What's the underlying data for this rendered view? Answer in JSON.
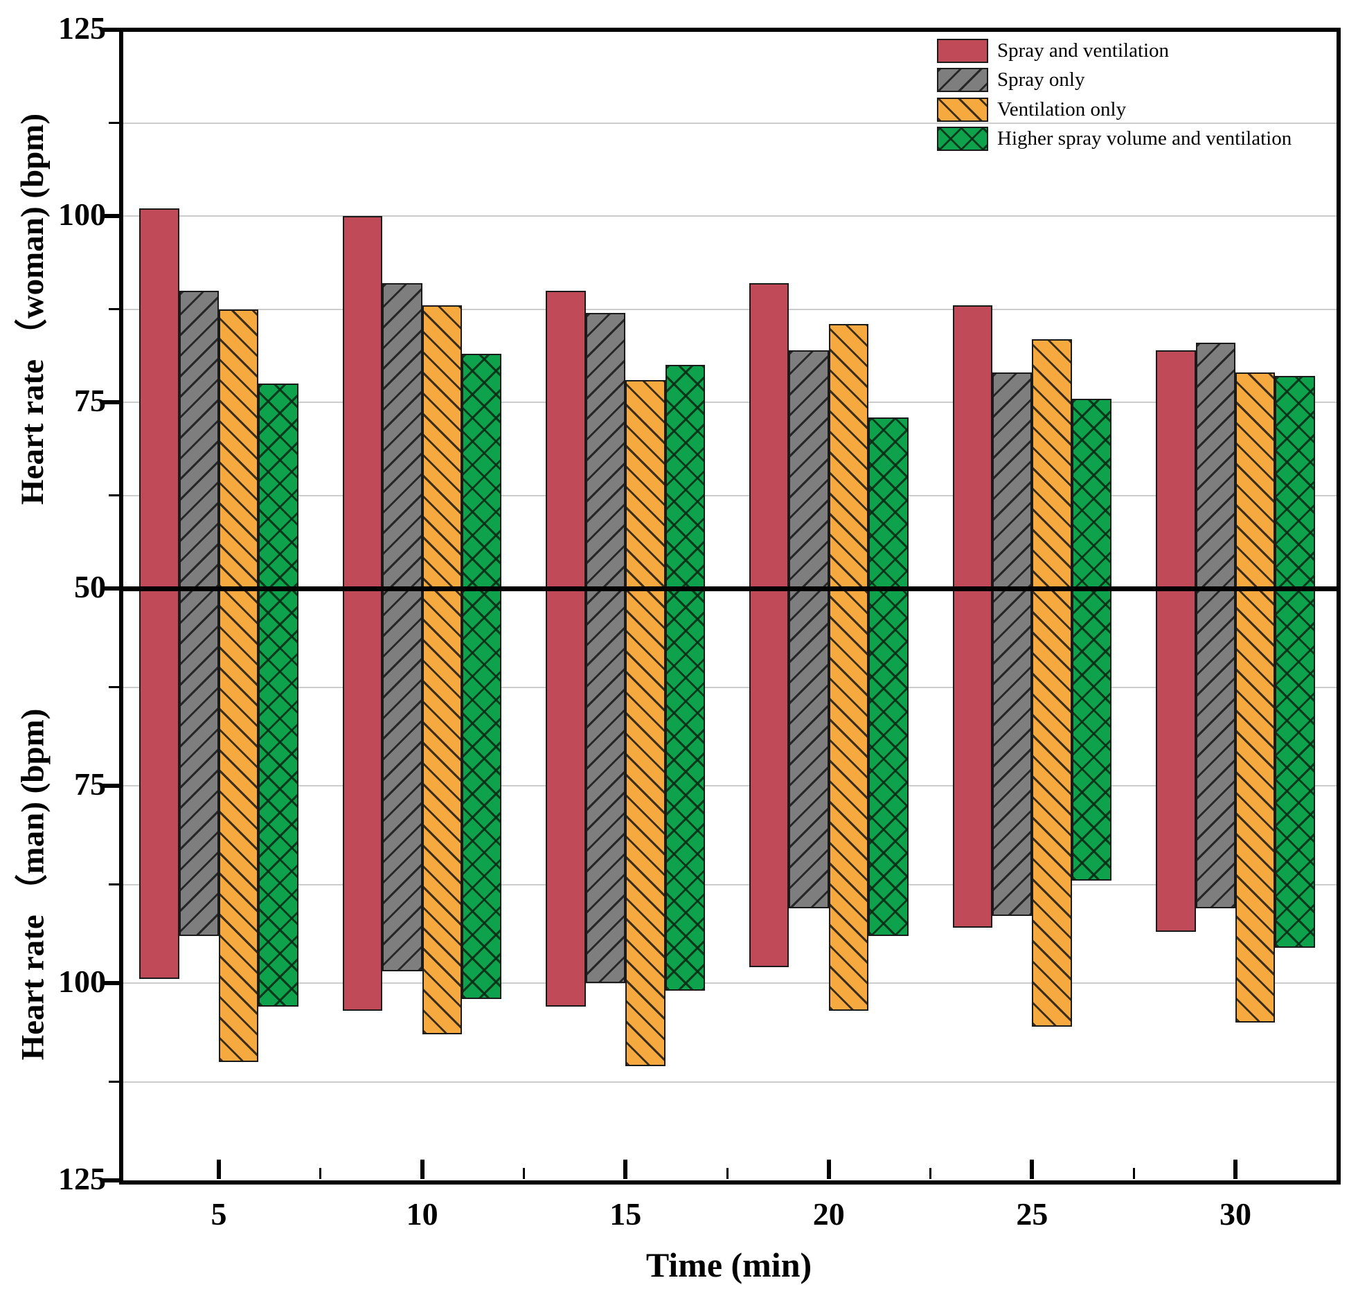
{
  "chart_data": {
    "type": "bar",
    "title": "",
    "xlabel": "Time (min)",
    "ylabel_woman": "Heart rate （woman) (bpm)",
    "ylabel_man": "Heart rate （man) (bpm)",
    "x_unit": "min",
    "x": [
      5,
      10,
      15,
      20,
      25,
      30
    ],
    "x_minor_ticks": [
      7.5,
      12.5,
      17.5,
      22.5,
      27.5
    ],
    "y_axis": {
      "woman_range": [
        50,
        125
      ],
      "man_range": [
        50,
        125
      ],
      "major_ticks": [
        50,
        75,
        100,
        125
      ],
      "minor_ticks": [
        62.5,
        87.5,
        112.5
      ],
      "grid_values": [
        62.5,
        75,
        87.5,
        100,
        112.5
      ],
      "grid_on": true
    },
    "legend_position": "top-right",
    "series": [
      {
        "name": "Spray and ventilation",
        "color": "#c14a58",
        "pattern": "solid",
        "woman": [
          101,
          100,
          90,
          91,
          88,
          82
        ],
        "man": [
          99.5,
          103.5,
          103,
          98,
          93,
          93.5
        ]
      },
      {
        "name": "Spray only",
        "color": "#7e7e7e",
        "pattern": "diag-up",
        "woman": [
          90,
          91,
          87,
          82,
          79,
          83
        ],
        "man": [
          94,
          98.5,
          100,
          90.5,
          91.5,
          90.5
        ]
      },
      {
        "name": "Ventilation only",
        "color": "#f6a93e",
        "pattern": "diag-down",
        "woman": [
          87.5,
          88,
          78,
          85.5,
          83.5,
          79
        ],
        "man": [
          110,
          106.5,
          110.5,
          103.5,
          105.5,
          105
        ]
      },
      {
        "name": "Higher spray volume and ventilation",
        "color": "#0fa24d",
        "pattern": "cross",
        "woman": [
          77.5,
          81.5,
          80,
          73,
          75.5,
          78.5
        ],
        "man": [
          103,
          102,
          101,
          94,
          87,
          95.5
        ]
      }
    ],
    "colors": {
      "axis": "#000000",
      "grid": "#cccccc",
      "bar_border": "#1a1a1a",
      "hatch": "#1c1c1c",
      "background": "#ffffff"
    }
  }
}
